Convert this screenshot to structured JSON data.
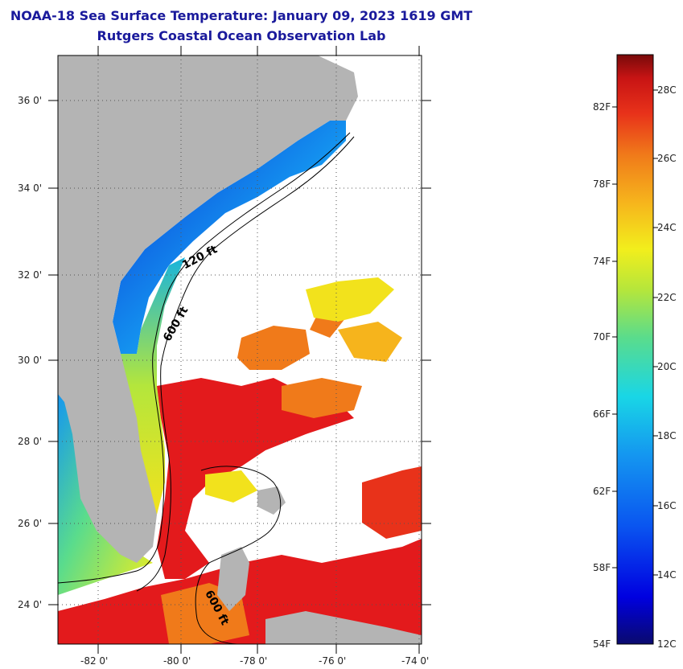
{
  "title": {
    "line1": "NOAA-18 Sea Surface Temperature:  January 09, 2023 1619 GMT",
    "line2": "Rutgers Coastal Ocean Observation Lab"
  },
  "map": {
    "lon_labels": [
      "-82 0'",
      "-80 0'",
      "-78 0'",
      "-76 0'",
      "-74 0'"
    ],
    "lat_labels": [
      "36 0'",
      "34 0'",
      "32 0'",
      "30 0'",
      "28 0'",
      "26 0'",
      "24 0'"
    ],
    "isobath_labels": [
      "120 ft",
      "600 ft",
      "600 ft"
    ],
    "colors": {
      "land": "#b4b4b4",
      "cloud": "#ffffff",
      "warm": "#e31a1c",
      "orange": "#f07a1a",
      "yellow": "#f2e21c",
      "cool": "#19b4dc",
      "cold": "#0a2fd6"
    }
  },
  "colorbar": {
    "fahrenheit_labels": [
      "82F",
      "78F",
      "74F",
      "70F",
      "66F",
      "62F",
      "58F",
      "54F"
    ],
    "celsius_labels": [
      "28C",
      "26C",
      "24C",
      "22C",
      "20C",
      "18C",
      "16C",
      "14C",
      "12C"
    ],
    "min_c": 12,
    "max_c": 29.2
  }
}
